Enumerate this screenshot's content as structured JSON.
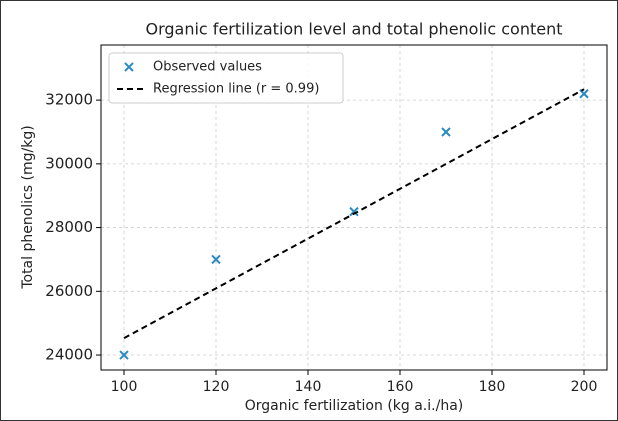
{
  "chart_data": {
    "type": "scatter",
    "title": "Organic fertilization level and total phenolic content",
    "xlabel": "Organic fertilization (kg a.i./ha)",
    "ylabel": "Total phenolics (mg/kg)",
    "series": [
      {
        "name": "Observed values",
        "type": "scatter",
        "color": "#2a8bc0",
        "marker": "x",
        "x": [
          100,
          120,
          150,
          170,
          200
        ],
        "values": [
          24000,
          27000,
          28500,
          31000,
          32200
        ]
      },
      {
        "name": "Regression line (r = 0.99)",
        "type": "line",
        "color": "#000000",
        "dash": true,
        "x": [
          100,
          200
        ],
        "values": [
          24530,
          32340
        ]
      }
    ],
    "xlim": [
      95,
      205
    ],
    "xticks": [
      100,
      120,
      140,
      160,
      180,
      200
    ],
    "ylim": [
      23530,
      33730
    ],
    "yticks": [
      24000,
      26000,
      28000,
      30000,
      32000
    ],
    "grid": true,
    "legend": "upper left"
  }
}
